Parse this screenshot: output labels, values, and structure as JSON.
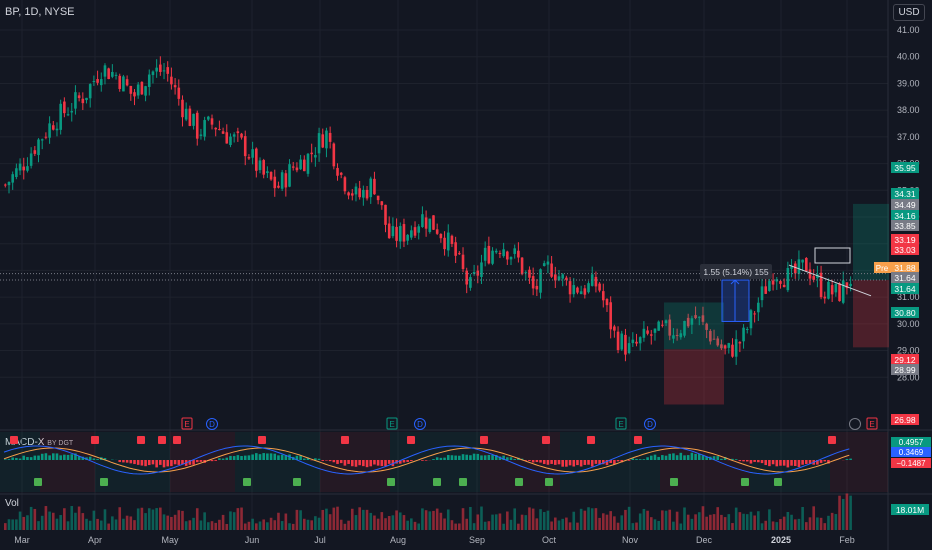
{
  "header": {
    "symbol": "BP, 1D, NYSE",
    "currency": "USD"
  },
  "macd_panel": {
    "title": "MACD-X",
    "by": "BY DGT"
  },
  "volume_panel": {
    "title": "Vol"
  },
  "chart_data": [
    {
      "type": "candlestick",
      "title": "BP, 1D, NYSE",
      "ylim": [
        26.4,
        41.6
      ],
      "y_ticks": [
        28.0,
        29.0,
        30.0,
        31.0,
        32.0,
        33.0,
        34.0,
        35.0,
        36.0,
        37.0,
        38.0,
        39.0,
        40.0,
        41.0
      ],
      "x_ticks": [
        "Mar",
        "Apr",
        "May",
        "Jun",
        "Jul",
        "Aug",
        "Sep",
        "Oct",
        "Nov",
        "Dec",
        "2025",
        "Feb"
      ],
      "close_path": [
        [
          "Mar",
          35.2
        ],
        [
          "Mar",
          35.9
        ],
        [
          "Mar",
          36.8
        ],
        [
          "Mar",
          37.6
        ],
        [
          "Mar",
          38.1
        ],
        [
          "Apr",
          38.6
        ],
        [
          "Apr",
          39.6
        ],
        [
          "Apr",
          39.3
        ],
        [
          "Apr",
          38.5
        ],
        [
          "Apr",
          39.4
        ],
        [
          "May",
          39.5
        ],
        [
          "May",
          38.2
        ],
        [
          "May",
          37.2
        ],
        [
          "May",
          37.5
        ],
        [
          "May",
          37.0
        ],
        [
          "Jun",
          36.6
        ],
        [
          "Jun",
          35.6
        ],
        [
          "Jun",
          35.1
        ],
        [
          "Jun",
          35.9
        ],
        [
          "Jul",
          36.3
        ],
        [
          "Jul",
          37.2
        ],
        [
          "Jul",
          35.5
        ],
        [
          "Jul",
          34.7
        ],
        [
          "Aug",
          35.3
        ],
        [
          "Aug",
          33.2
        ],
        [
          "Aug",
          33.4
        ],
        [
          "Aug",
          34.0
        ],
        [
          "Aug",
          33.6
        ],
        [
          "Sep",
          32.7
        ],
        [
          "Sep",
          31.3
        ],
        [
          "Sep",
          32.6
        ],
        [
          "Sep",
          33.0
        ],
        [
          "Oct",
          32.4
        ],
        [
          "Oct",
          31.2
        ],
        [
          "Oct",
          32.2
        ],
        [
          "Oct",
          31.5
        ],
        [
          "Oct",
          31.3
        ],
        [
          "Nov",
          31.5
        ],
        [
          "Nov",
          29.6
        ],
        [
          "Nov",
          29.0
        ],
        [
          "Nov",
          29.5
        ],
        [
          "Nov",
          29.7
        ],
        [
          "Dec",
          29.8
        ],
        [
          "Dec",
          30.3
        ],
        [
          "Dec",
          29.6
        ],
        [
          "Dec",
          28.9
        ],
        [
          "Dec",
          29.4
        ],
        [
          "2025",
          30.8
        ],
        [
          "2025",
          32.0
        ],
        [
          "2025",
          31.7
        ],
        [
          "2025",
          32.2
        ],
        [
          "2025",
          31.3
        ],
        [
          "Feb",
          31.1
        ],
        [
          "Feb",
          31.88
        ]
      ],
      "price_labels": [
        {
          "value": "35.95",
          "color": "#089981"
        },
        {
          "value": "34.31",
          "color": "#089981"
        },
        {
          "value": "34.49",
          "color": "#787b86"
        },
        {
          "value": "34.16",
          "color": "#089981"
        },
        {
          "value": "33.85",
          "color": "#787b86"
        },
        {
          "value": "33.19",
          "color": "#f23645"
        },
        {
          "value": "33.03",
          "color": "#f23645"
        },
        {
          "value": "31.88",
          "color": "#f7a04b",
          "prefix": "Pre"
        },
        {
          "value": "31.64",
          "color": "#787b86"
        },
        {
          "value": "31.64",
          "color": "#089981"
        },
        {
          "value": "30.80",
          "color": "#089981"
        },
        {
          "value": "29.12",
          "color": "#f23645"
        },
        {
          "value": "28.99",
          "color": "#787b86"
        },
        {
          "value": "26.98",
          "color": "#f23645"
        }
      ],
      "measure_label": "1.55 (5.14%) 155",
      "events": [
        {
          "letter": "E",
          "color": "#f23645",
          "x_label": "May"
        },
        {
          "letter": "D",
          "color": "#2962ff",
          "x_label": "May"
        },
        {
          "letter": "E",
          "color": "#089981",
          "x_label": "Aug"
        },
        {
          "letter": "D",
          "color": "#2962ff",
          "x_label": "Aug"
        },
        {
          "letter": "E",
          "color": "#089981",
          "x_label": "Nov"
        },
        {
          "letter": "D",
          "color": "#2962ff",
          "x_label": "Nov"
        },
        {
          "letter": "E",
          "color": "#f23645",
          "x_label": "Feb"
        }
      ],
      "grid": true
    },
    {
      "type": "line",
      "title": "MACD-X BY DGT",
      "y_labels": [
        {
          "value": "0.4957",
          "color": "#089981"
        },
        {
          "value": "0.3469",
          "color": "#2962ff"
        },
        {
          "value": "−0.1487",
          "color": "#f23645"
        }
      ],
      "markers_up": [
        "Mar",
        "Apr",
        "Jun",
        "Jun",
        "Jul",
        "Aug",
        "Sep",
        "Oct",
        "Oct",
        "Nov",
        "Dec",
        "2025"
      ],
      "markers_down": [
        "Mar",
        "Apr",
        "Apr",
        "May",
        "Jun",
        "Jul",
        "Aug",
        "Sep",
        "Sep",
        "Oct",
        "Oct",
        "Nov",
        "2025"
      ],
      "series": [
        {
          "name": "MACD",
          "color": "#2962ff"
        },
        {
          "name": "Signal",
          "color": "#f7a04b"
        }
      ]
    },
    {
      "type": "bar",
      "title": "Vol",
      "y_labels": [
        {
          "value": "18.01M",
          "color": "#089981"
        }
      ]
    }
  ]
}
